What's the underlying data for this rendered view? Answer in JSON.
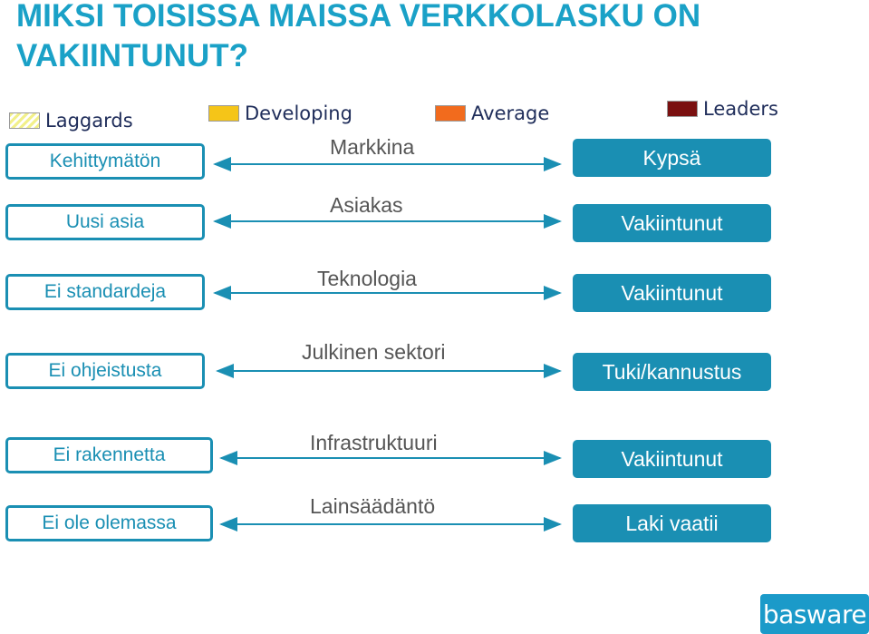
{
  "title_line1": "MIKSI TOISISSA MAISSA VERKKOLASKU ON",
  "title_line2": "VAKIINTUNUT?",
  "legend": [
    {
      "label": "Laggards",
      "color": "#f2f08a",
      "pattern": "hatched"
    },
    {
      "label": "Developing",
      "color": "#f5c518"
    },
    {
      "label": "Average",
      "color": "#f26b1d"
    },
    {
      "label": "Leaders",
      "color": "#7a1010"
    }
  ],
  "rows": [
    {
      "left": "Kehittymätön",
      "middle": "Markkina",
      "right": "Kypsä"
    },
    {
      "left": "Uusi asia",
      "middle": "Asiakas",
      "right": "Vakiintunut"
    },
    {
      "left": "Ei standardeja",
      "middle": "Teknologia",
      "right": "Vakiintunut"
    },
    {
      "left": "Ei ohjeistusta",
      "middle": "Julkinen sektori",
      "right": "Tuki/kannustus"
    },
    {
      "left": "Ei rakennetta",
      "middle": "Infrastruktuuri",
      "right": "Vakiintunut"
    },
    {
      "left": "Ei ole olemassa",
      "middle": "Lainsäädäntö",
      "right": "Laki vaatii"
    }
  ],
  "colors": {
    "accent": "#1a8fb3",
    "title": "#1aa1c7"
  },
  "logo_text": "basware"
}
